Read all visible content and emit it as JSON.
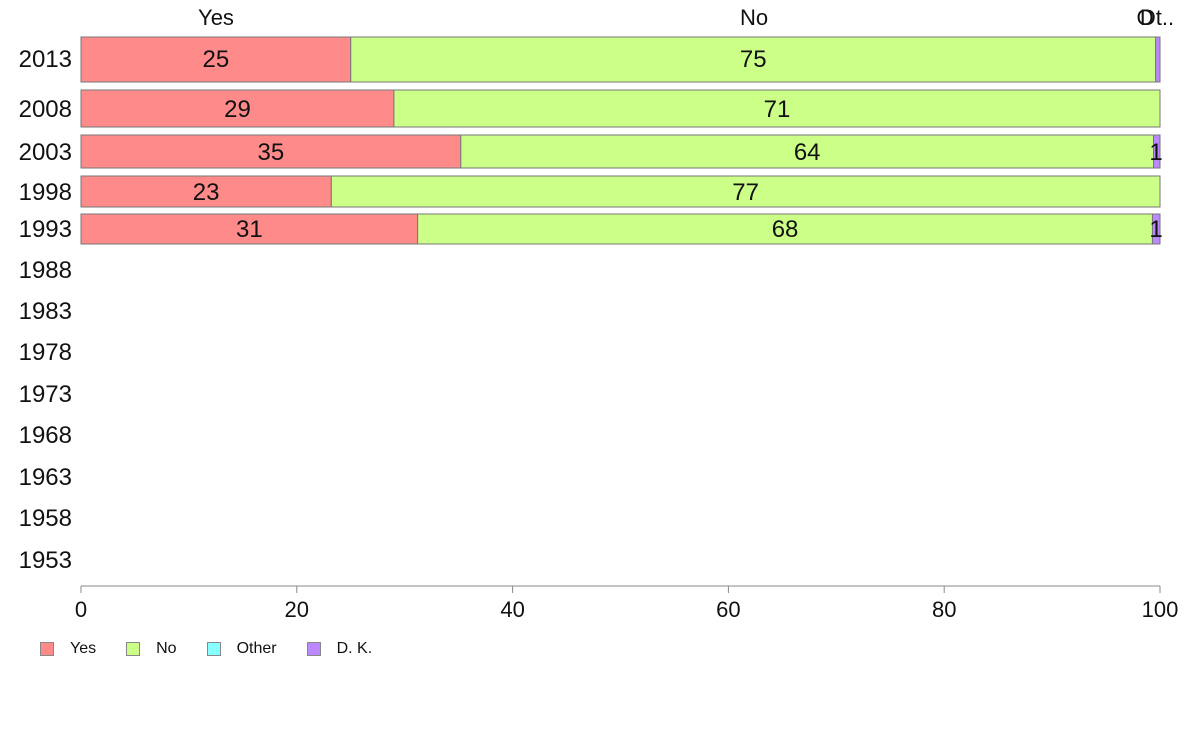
{
  "chart_data": {
    "type": "bar",
    "orientation": "horizontal",
    "stacked": true,
    "categories": [
      "2013",
      "2008",
      "2003",
      "1998",
      "1993",
      "1988",
      "1983",
      "1978",
      "1973",
      "1968",
      "1963",
      "1958",
      "1953"
    ],
    "series": [
      {
        "name": "Yes",
        "color": "#ff8a8a",
        "values": [
          25,
          29,
          35.2,
          23.2,
          31.2,
          null,
          null,
          null,
          null,
          null,
          null,
          null,
          null
        ],
        "labels": [
          "25",
          "29",
          "35",
          "23",
          "31",
          "",
          "",
          "",
          "",
          "",
          "",
          "",
          ""
        ]
      },
      {
        "name": "No",
        "color": "#ccff88",
        "values": [
          74.6,
          71,
          64.2,
          76.8,
          68.1,
          null,
          null,
          null,
          null,
          null,
          null,
          null,
          null
        ],
        "labels": [
          "75",
          "71",
          "64",
          "77",
          "68",
          "",
          "",
          "",
          "",
          "",
          "",
          "",
          ""
        ]
      },
      {
        "name": "Other",
        "color": "#88ffff",
        "values": [
          0,
          0,
          0,
          0,
          0,
          null,
          null,
          null,
          null,
          null,
          null,
          null,
          null
        ],
        "labels": [
          "",
          "",
          "",
          "",
          "",
          "",
          "",
          "",
          "",
          "",
          "",
          "",
          ""
        ]
      },
      {
        "name": "D. K.",
        "color": "#bb88ff",
        "values": [
          0.4,
          0,
          0.6,
          0,
          0.7,
          null,
          null,
          null,
          null,
          null,
          null,
          null,
          null
        ],
        "labels": [
          "",
          "",
          "1",
          "",
          "1",
          "",
          "",
          "",
          "",
          "",
          "",
          "",
          ""
        ]
      }
    ],
    "top_labels": [
      "Yes",
      "No",
      "Other",
      "D. K."
    ],
    "top_label_texts": [
      "Yes",
      "No",
      "O",
      "Dt.."
    ],
    "xlim": [
      0,
      100
    ],
    "xticks": [
      "0",
      "20",
      "40",
      "60",
      "80",
      "100"
    ],
    "grid": false,
    "legend": "bottom-left"
  }
}
